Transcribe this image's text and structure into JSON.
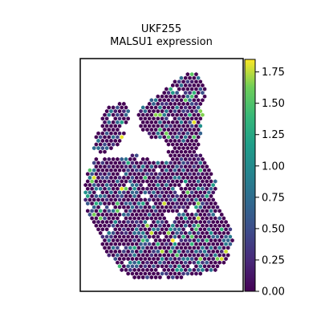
{
  "chart_data": {
    "type": "scatter",
    "title": "UKF255",
    "subtitle": "MALSU1 expression",
    "xlabel": "",
    "ylabel": "",
    "grid": false,
    "axes_ticks": false,
    "colormap": "viridis",
    "colorbar": {
      "range": [
        0.0,
        1.85
      ],
      "ticks": [
        0.0,
        0.25,
        0.5,
        0.75,
        1.0,
        1.25,
        1.5,
        1.75
      ],
      "tick_labels": [
        "0.00",
        "0.25",
        "0.50",
        "0.75",
        "1.00",
        "1.25",
        "1.50",
        "1.75"
      ]
    },
    "marker": "hexagon",
    "colors": {
      "frame": "#000000",
      "background": "#ffffff"
    },
    "value_distribution": {
      "zero_fraction": 0.6,
      "low_max": 0.9,
      "high_max": 1.85
    }
  }
}
